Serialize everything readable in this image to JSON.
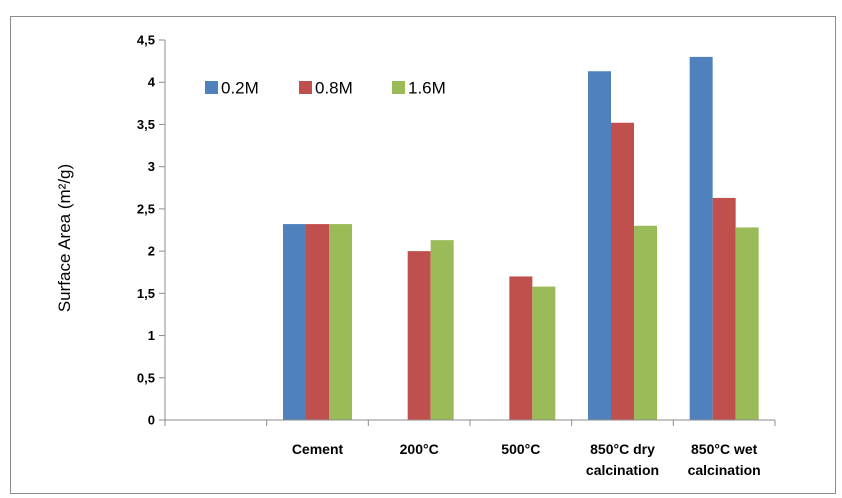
{
  "chart_data": {
    "type": "bar",
    "title": "",
    "xlabel": "",
    "ylabel": "Surface Area (m²/g)",
    "ylim": [
      0,
      4.5
    ],
    "ytick_step": 0.5,
    "decimal_separator": ",",
    "grid": false,
    "legend_placement": "top-left",
    "categories": [
      {
        "lines": [
          "",
          ""
        ]
      },
      {
        "lines": [
          "Cement",
          ""
        ]
      },
      {
        "lines": [
          "200°C",
          ""
        ]
      },
      {
        "lines": [
          "500°C",
          ""
        ]
      },
      {
        "lines": [
          "850°C dry",
          "calcination"
        ]
      },
      {
        "lines": [
          "850°C wet",
          "calcination"
        ]
      }
    ],
    "series": [
      {
        "name": "0.2M",
        "color": "#4f81bd",
        "values": [
          null,
          2.32,
          null,
          null,
          4.13,
          4.3
        ]
      },
      {
        "name": "0.8M",
        "color": "#c0504d",
        "values": [
          null,
          2.32,
          2.0,
          1.7,
          3.52,
          2.63
        ]
      },
      {
        "name": "1.6M",
        "color": "#9bbb59",
        "values": [
          null,
          2.32,
          2.13,
          1.58,
          2.3,
          2.28
        ]
      }
    ]
  }
}
